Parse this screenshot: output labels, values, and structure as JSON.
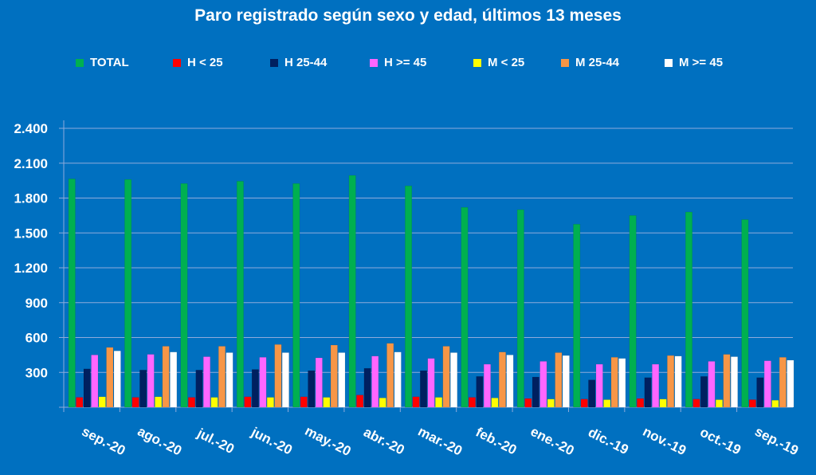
{
  "chart_data": {
    "type": "bar",
    "title": "Paro registrado según sexo y edad, últimos 13 meses",
    "xlabel": "",
    "ylabel": "",
    "ylim": [
      0,
      2400
    ],
    "yticks": [
      "",
      "300",
      "600",
      "900",
      "1.200",
      "1.500",
      "1.800",
      "2.100",
      "2.400"
    ],
    "grid": true,
    "legend_position": "top",
    "categories": [
      "sep.-20",
      "ago.-20",
      "jul.-20",
      "jun.-20",
      "may.-20",
      "abr.-20",
      "mar.-20",
      "feb.-20",
      "ene.-20",
      "dic.-19",
      "nov.-19",
      "oct.-19",
      "sep.-19"
    ],
    "series": [
      {
        "name": "TOTAL",
        "color": "#00b050",
        "values": [
          1965,
          1960,
          1925,
          1945,
          1925,
          1995,
          1905,
          1720,
          1700,
          1575,
          1650,
          1680,
          1615
        ]
      },
      {
        "name": "H < 25",
        "color": "#ff0000",
        "values": [
          85,
          85,
          85,
          90,
          90,
          105,
          90,
          85,
          75,
          70,
          75,
          70,
          65
        ]
      },
      {
        "name": "H 25-44",
        "color": "#002060",
        "values": [
          330,
          320,
          320,
          325,
          315,
          335,
          315,
          265,
          260,
          235,
          255,
          265,
          255
        ]
      },
      {
        "name": "H >= 45",
        "color": "#ff66ff",
        "values": [
          450,
          455,
          435,
          430,
          425,
          440,
          420,
          370,
          395,
          370,
          370,
          395,
          400
        ]
      },
      {
        "name": "M < 25",
        "color": "#ffff00",
        "values": [
          90,
          90,
          85,
          85,
          85,
          80,
          85,
          80,
          70,
          65,
          70,
          65,
          60
        ]
      },
      {
        "name": "M 25-44",
        "color": "#f79646",
        "values": [
          515,
          525,
          525,
          540,
          535,
          550,
          525,
          475,
          470,
          430,
          445,
          455,
          430
        ]
      },
      {
        "name": "M >= 45",
        "color": "#ffffff",
        "values": [
          485,
          475,
          470,
          470,
          470,
          475,
          470,
          450,
          445,
          420,
          440,
          435,
          405
        ]
      }
    ]
  }
}
